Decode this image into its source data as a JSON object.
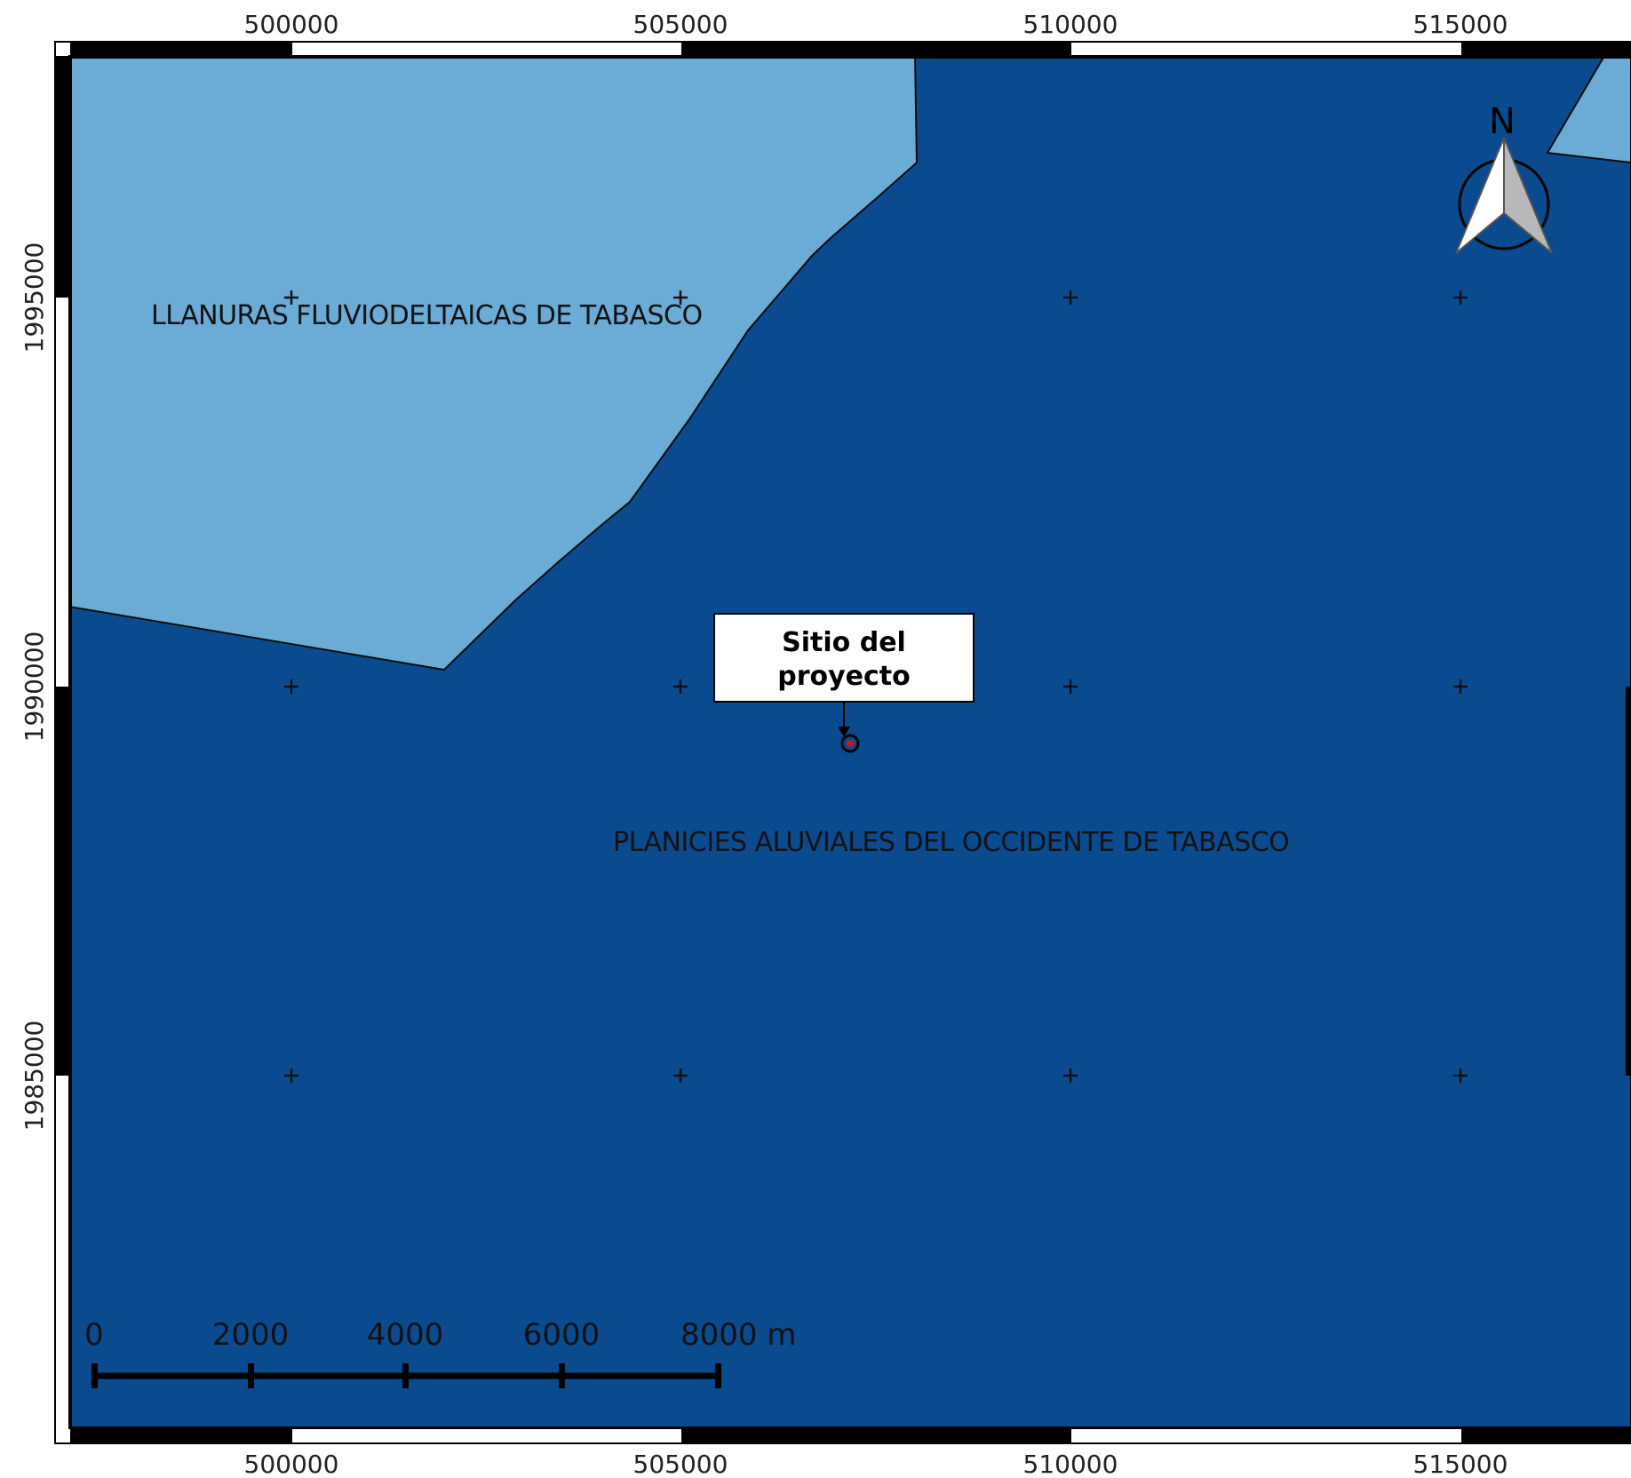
{
  "map": {
    "colors": {
      "frame": "#000000",
      "background": "#ffffff",
      "region_dark": "#0a4a8f",
      "region_light": "#6aacd6",
      "callout_fill": "#ffffff",
      "site_marker": "#d01030"
    },
    "regions": [
      {
        "name": "LLANURAS FLUVIODELTAICAS DE TABASCO",
        "color": "#6aacd6"
      },
      {
        "name": "PLANICIES ALUVIALES DEL OCCIDENTE DE TABASCO",
        "color": "#0a4a8f"
      }
    ],
    "grid": {
      "x_labels": [
        "500000",
        "505000",
        "510000",
        "515000"
      ],
      "y_labels": [
        "1995000",
        "1990000",
        "1985000"
      ]
    },
    "callout": {
      "line1": "Sitio del",
      "line2": "proyecto"
    },
    "north_arrow": {
      "label": "N",
      "icon": "north-arrow-icon"
    },
    "scale_bar": {
      "labels": [
        "0",
        "2000",
        "4000",
        "6000",
        "8000 m"
      ],
      "unit": "m"
    }
  }
}
